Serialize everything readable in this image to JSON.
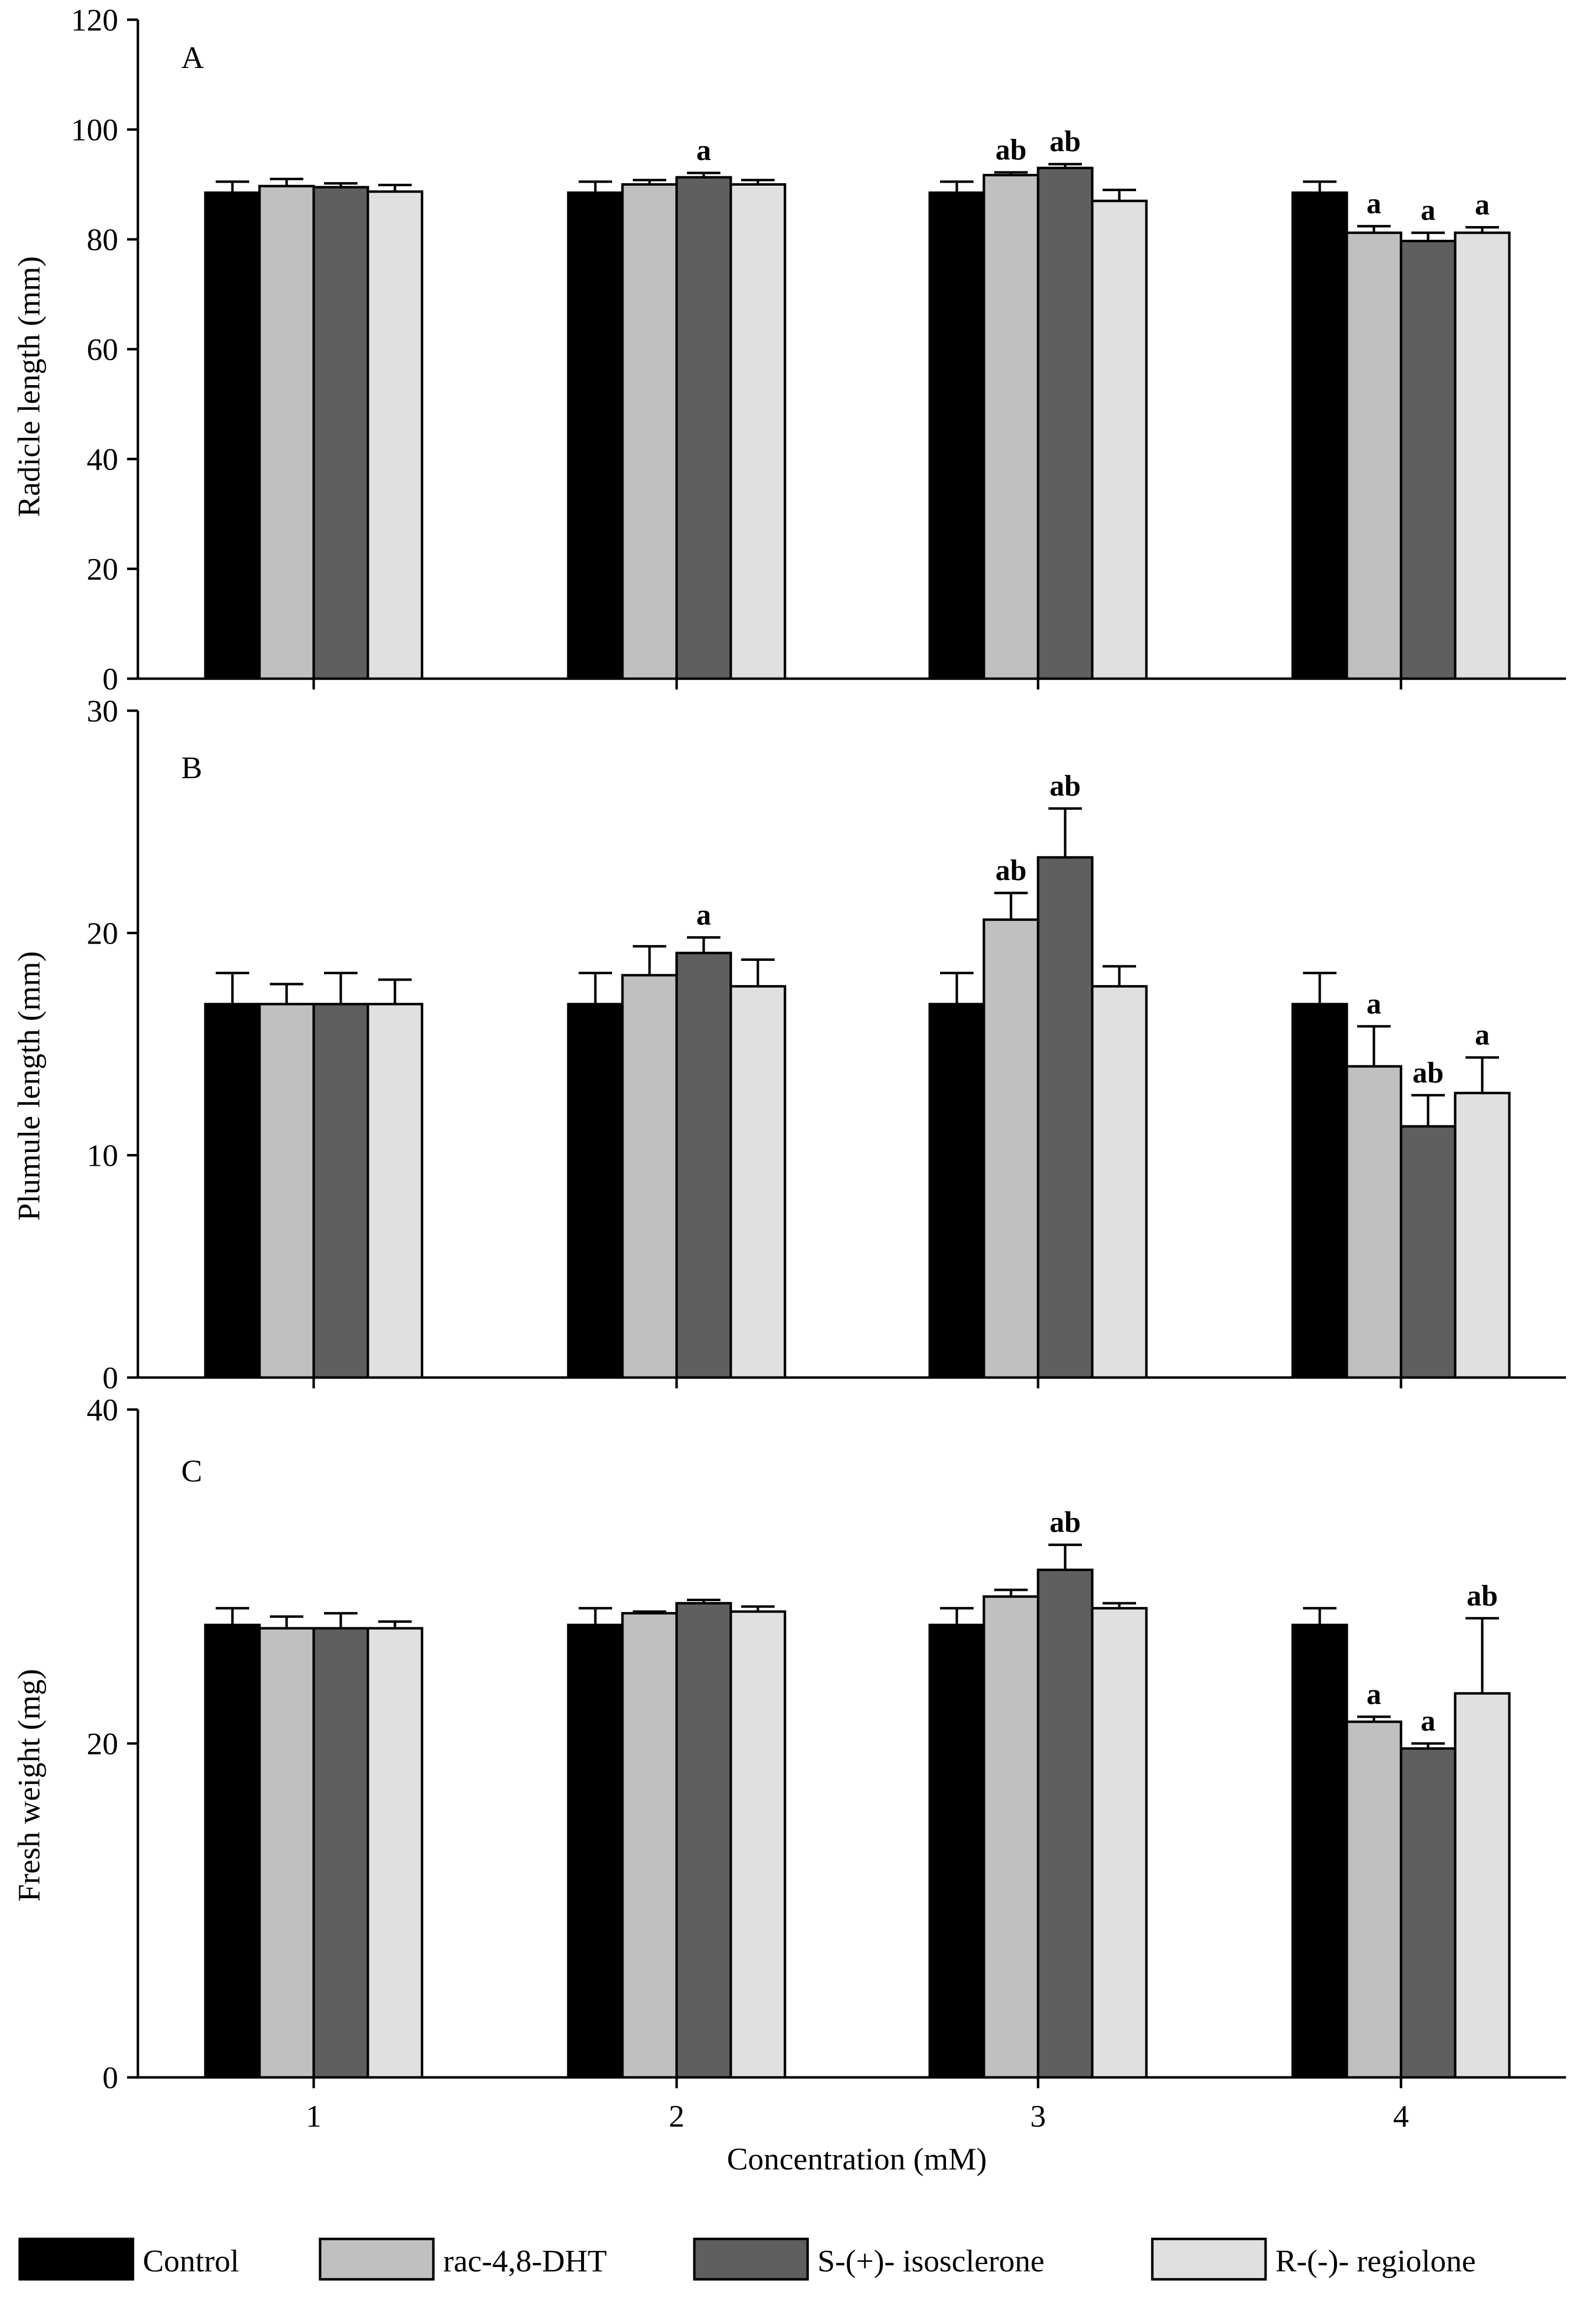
{
  "colors": {
    "control": "#000000",
    "rac48dht": "#c0c0c0",
    "isosclerone": "#5f5f5f",
    "regiolone": "#e0e0e0",
    "axis": "#000000"
  },
  "legend": {
    "items": [
      {
        "label": "Control",
        "color_key": "control"
      },
      {
        "label": "rac-4,8-DHT",
        "color_key": "rac48dht"
      },
      {
        "label": "S-(+)- isosclerone",
        "color_key": "isosclerone"
      },
      {
        "label": "R-(-)- regiolone",
        "color_key": "regiolone"
      }
    ]
  },
  "chart_data": [
    {
      "type": "bar",
      "panel": "A",
      "ylabel": "Radicle length  (mm)",
      "xlabel": "",
      "ylim": [
        0,
        120
      ],
      "yticks": [
        0,
        20,
        40,
        60,
        80,
        100,
        120
      ],
      "categories": [
        "1",
        "2",
        "3",
        "4"
      ],
      "series": [
        {
          "name": "Control",
          "values": [
            88.5,
            88.5,
            88.5,
            88.5
          ],
          "errors": [
            2,
            2,
            2,
            2
          ],
          "labels": [
            "",
            "",
            "",
            ""
          ]
        },
        {
          "name": "rac-4,8-DHT",
          "values": [
            89.7,
            90,
            91.7,
            81.2
          ],
          "errors": [
            1.3,
            0.8,
            0.5,
            1.2
          ],
          "labels": [
            "",
            "",
            "ab",
            "a"
          ]
        },
        {
          "name": "S-(+)- isosclerone",
          "values": [
            89.5,
            91.3,
            93,
            79.7
          ],
          "errors": [
            0.7,
            0.8,
            0.7,
            1.5
          ],
          "labels": [
            "",
            "a",
            "ab",
            "a"
          ]
        },
        {
          "name": "R-(-)- regiolone",
          "values": [
            88.7,
            90,
            87,
            81.2
          ],
          "errors": [
            1.2,
            0.8,
            2,
            1
          ],
          "labels": [
            "",
            "",
            "",
            "a"
          ]
        }
      ]
    },
    {
      "type": "bar",
      "panel": "B",
      "ylabel": "Plumule length (mm)",
      "xlabel": "",
      "ylim": [
        0,
        30
      ],
      "yticks": [
        0,
        10,
        20,
        30
      ],
      "categories": [
        "1",
        "2",
        "3",
        "4"
      ],
      "series": [
        {
          "name": "Control",
          "values": [
            16.8,
            16.8,
            16.8,
            16.8
          ],
          "errors": [
            1.4,
            1.4,
            1.4,
            1.4
          ],
          "labels": [
            "",
            "",
            "",
            ""
          ]
        },
        {
          "name": "rac-4,8-DHT",
          "values": [
            16.8,
            18.1,
            20.6,
            14
          ],
          "errors": [
            0.9,
            1.3,
            1.2,
            1.8
          ],
          "labels": [
            "",
            "",
            "ab",
            "a"
          ]
        },
        {
          "name": "S-(+)- isosclerone",
          "values": [
            16.8,
            19.1,
            23.4,
            11.3
          ],
          "errors": [
            1.4,
            0.7,
            2.2,
            1.4
          ],
          "labels": [
            "",
            "a",
            "ab",
            "ab"
          ]
        },
        {
          "name": "R-(-)- regiolone",
          "values": [
            16.8,
            17.6,
            17.6,
            12.8
          ],
          "errors": [
            1.1,
            1.2,
            0.9,
            1.6
          ],
          "labels": [
            "",
            "",
            "",
            "a"
          ]
        }
      ]
    },
    {
      "type": "bar",
      "panel": "C",
      "ylabel": "Fresh weight (mg)",
      "xlabel": "Concentration (mM)",
      "ylim": [
        0,
        40
      ],
      "yticks": [
        0,
        20,
        40
      ],
      "categories": [
        "1",
        "2",
        "3",
        "4"
      ],
      "series": [
        {
          "name": "Control",
          "values": [
            27.1,
            27.1,
            27.1,
            27.1
          ],
          "errors": [
            1,
            1,
            1,
            1
          ],
          "labels": [
            "",
            "",
            "",
            ""
          ]
        },
        {
          "name": "rac-4,8-DHT",
          "values": [
            26.9,
            27.8,
            28.8,
            21.3
          ],
          "errors": [
            0.7,
            0.1,
            0.4,
            0.3
          ],
          "labels": [
            "",
            "",
            "",
            "a"
          ]
        },
        {
          "name": "S-(+)- isosclerone",
          "values": [
            26.9,
            28.4,
            30.4,
            19.7
          ],
          "errors": [
            0.9,
            0.2,
            1.5,
            0.3
          ],
          "labels": [
            "",
            "",
            "ab",
            "a"
          ]
        },
        {
          "name": "R-(-)- regiolone",
          "values": [
            26.9,
            27.9,
            28.1,
            23
          ],
          "errors": [
            0.4,
            0.3,
            0.3,
            4.5
          ],
          "labels": [
            "",
            "",
            "",
            "ab"
          ]
        }
      ]
    }
  ]
}
